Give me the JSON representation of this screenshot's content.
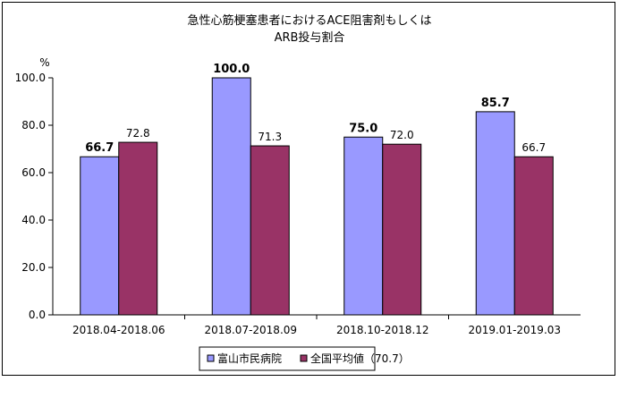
{
  "chart_data": {
    "type": "bar",
    "title_lines": [
      "急性心筋梗塞患者におけるACE阻害剤もしくは",
      "ARB投与割合"
    ],
    "ylabel": "%",
    "ylim": [
      0,
      100
    ],
    "yticks": [
      "0.0",
      "20.0",
      "40.0",
      "60.0",
      "80.0",
      "100.0"
    ],
    "categories": [
      "2018.04-2018.06",
      "2018.07-2018.09",
      "2018.10-2018.12",
      "2019.01-2019.03"
    ],
    "series": [
      {
        "name": "富山市民病院",
        "color": "#9999ff",
        "values": [
          66.7,
          100.0,
          75.0,
          85.7
        ],
        "labels": [
          "66.7",
          "100.0",
          "75.0",
          "85.7"
        ]
      },
      {
        "name": "全国平均値（70.7）",
        "color": "#993366",
        "values": [
          72.8,
          71.3,
          72.0,
          66.7
        ],
        "labels": [
          "72.8",
          "71.3",
          "72.0",
          "66.7"
        ]
      }
    ],
    "legend_position": "bottom"
  }
}
